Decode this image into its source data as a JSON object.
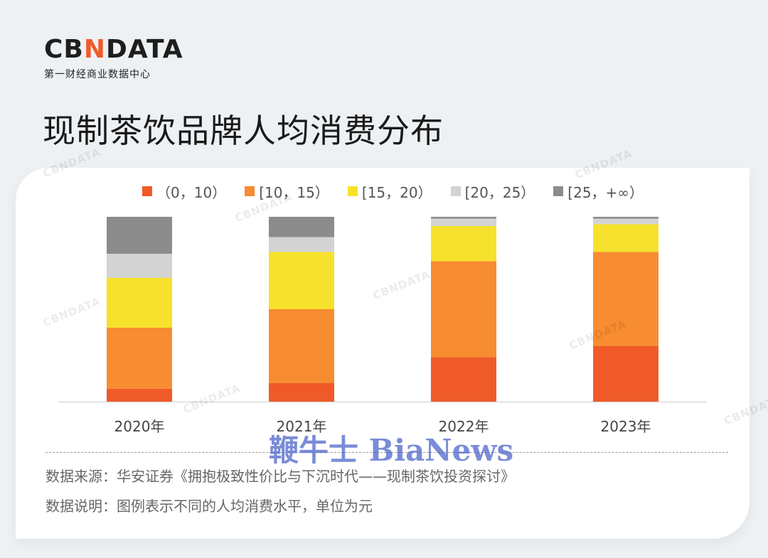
{
  "logo": {
    "wordmark_a": "CB",
    "wordmark_accent": "N",
    "wordmark_b": "DATA",
    "tagline": "第一财经商业数据中心"
  },
  "title": "现制茶饮品牌人均消费分布",
  "watermark_text": "CBNDATA",
  "watermark_bia": "鞭牛士 BiaNews",
  "colors": {
    "seg0": "#f05a28",
    "seg1": "#f78c30",
    "seg2": "#f6e22c",
    "seg3": "#d3d3d3",
    "seg4": "#8c8c8c",
    "axis": "#cfcfcf",
    "tick_text": "#444444"
  },
  "chart_data": {
    "type": "bar",
    "stacked": true,
    "normalized": true,
    "categories": [
      "2020年",
      "2021年",
      "2022年",
      "2023年"
    ],
    "series": [
      {
        "name": "（0，10）",
        "values": [
          7,
          10,
          24,
          30
        ]
      },
      {
        "name": "[10，15）",
        "values": [
          33,
          40,
          52,
          51
        ]
      },
      {
        "name": "[15，20）",
        "values": [
          27,
          31,
          19,
          15
        ]
      },
      {
        "name": "[20，25）",
        "values": [
          13,
          8,
          4,
          3
        ]
      },
      {
        "name": "[25，+∞）",
        "values": [
          20,
          11,
          1,
          1
        ]
      }
    ],
    "ylim": [
      0,
      100
    ],
    "legend_position": "top",
    "grid": false
  },
  "notes": {
    "source": "数据来源：华安证券《拥抱极致性价比与下沉时代——现制茶饮投资探讨》",
    "desc": "数据说明：图例表示不同的人均消费水平，单位为元"
  }
}
